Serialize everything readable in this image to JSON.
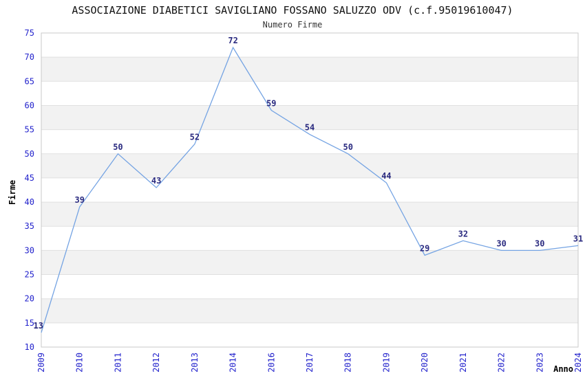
{
  "header": {
    "title": "ASSOCIAZIONE DIABETICI SAVIGLIANO FOSSANO SALUZZO ODV (c.f.95019610047)",
    "subtitle": "Numero Firme"
  },
  "chart_data": {
    "type": "line",
    "title": "ASSOCIAZIONE DIABETICI SAVIGLIANO FOSSANO SALUZZO ODV (c.f.95019610047)",
    "subtitle": "Numero Firme",
    "xlabel": "Anno",
    "ylabel": "Firme",
    "categories": [
      "2009",
      "2010",
      "2011",
      "2012",
      "2013",
      "2014",
      "2016",
      "2017",
      "2018",
      "2019",
      "2020",
      "2021",
      "2022",
      "2023",
      "2024"
    ],
    "values": [
      13,
      39,
      50,
      43,
      52,
      72,
      59,
      54,
      50,
      44,
      29,
      32,
      30,
      30,
      31
    ],
    "ylim": [
      10,
      75
    ],
    "ytick_step": 5,
    "grid": "horizontal-gridlines-with-alternating-bands",
    "legend": "none",
    "colors": {
      "line": "#74a3e3",
      "tick_label": "#2222cc",
      "data_label": "#2b2b80",
      "band": "#f2f2f2",
      "gridline": "#e0e0e0",
      "plot_border": "#c9c9c9",
      "title": "#111111",
      "axis_title": "#000000",
      "background": "#ffffff"
    }
  }
}
